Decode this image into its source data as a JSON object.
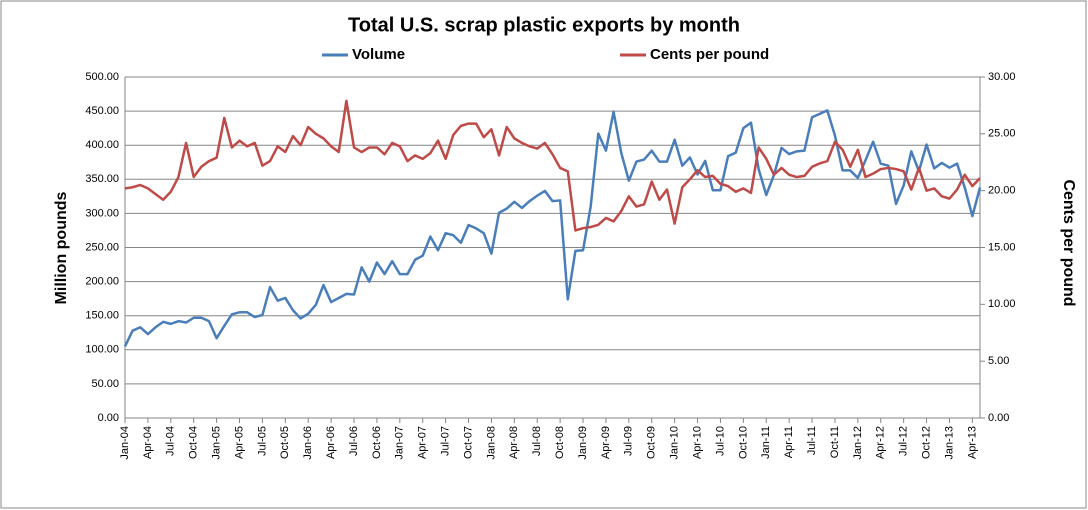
{
  "chart_data": {
    "type": "line",
    "title": "Total U.S. scrap plastic exports by month",
    "y_label": "Million pounds",
    "y2_label": "Cents per pound",
    "legend": "top",
    "grid": true,
    "categories": [
      "Jan-04",
      null,
      null,
      "Apr-04",
      null,
      null,
      "Jul-04",
      null,
      null,
      "Oct-04",
      null,
      null,
      "Jan-05",
      null,
      null,
      "Apr-05",
      null,
      null,
      "Jul-05",
      null,
      null,
      "Oct-05",
      null,
      null,
      "Jan-06",
      null,
      null,
      "Apr-06",
      null,
      null,
      "Jul-06",
      null,
      null,
      "Oct-06",
      null,
      null,
      "Jan-07",
      null,
      null,
      "Apr-07",
      null,
      null,
      "Jul-07",
      null,
      null,
      "Oct-07",
      null,
      null,
      "Jan-08",
      null,
      null,
      "Apr-08",
      null,
      null,
      "Jul-08",
      null,
      null,
      "Oct-08",
      null,
      null,
      "Jan-09",
      null,
      null,
      "Apr-09",
      null,
      null,
      "Jul-09",
      null,
      null,
      "Oct-09",
      null,
      null,
      "Jan-10",
      null,
      null,
      "Apr-10",
      null,
      null,
      "Jul-10",
      null,
      null,
      "Oct-10",
      null,
      null,
      "Jan-11",
      null,
      null,
      "Apr-11",
      null,
      null,
      "Jul-11",
      null,
      null,
      "Oct-11",
      null,
      null,
      "Jan-12",
      null,
      null,
      "Apr-12",
      null,
      null,
      "Jul-12",
      null,
      null,
      "Oct-12",
      null,
      null,
      "Jan-13",
      null,
      null,
      "Apr-13",
      null
    ],
    "series": [
      {
        "name": "Volume",
        "color": "#4a7ebb",
        "values": [
          105,
          128,
          133,
          123,
          133,
          141,
          138,
          142,
          140,
          147,
          147,
          142,
          117,
          135,
          152,
          155,
          155,
          148,
          151,
          192,
          172,
          176,
          158,
          146,
          153,
          166,
          195,
          170,
          176,
          182,
          181,
          221,
          200,
          228,
          211,
          230,
          211,
          211,
          232,
          238,
          266,
          246,
          271,
          268,
          257,
          283,
          278,
          271,
          241,
          301,
          307,
          317,
          308,
          318,
          326,
          333,
          318,
          319,
          174,
          245,
          246,
          310,
          417,
          392,
          449,
          389,
          348,
          376,
          379,
          392,
          376,
          376,
          408,
          370,
          382,
          357,
          377,
          334,
          334,
          384,
          389,
          425,
          433,
          365,
          327,
          356,
          396,
          387,
          391,
          392,
          441,
          446,
          451,
          414,
          363,
          363,
          352,
          378,
          405,
          373,
          370,
          314,
          341,
          391,
          362,
          401,
          366,
          374,
          367,
          373,
          338,
          296,
          338
        ]
      },
      {
        "name": "Cents per pound",
        "color": "#be4b48",
        "axis": "y2",
        "values": [
          20.2,
          20.3,
          20.5,
          20.2,
          19.7,
          19.2,
          19.9,
          21.2,
          24.2,
          21.2,
          22.1,
          22.6,
          22.9,
          26.4,
          23.8,
          24.4,
          23.9,
          24.2,
          22.2,
          22.6,
          23.9,
          23.4,
          24.8,
          24.0,
          25.6,
          25.0,
          24.6,
          23.9,
          23.4,
          27.9,
          23.8,
          23.4,
          23.8,
          23.8,
          23.2,
          24.2,
          23.9,
          22.6,
          23.1,
          22.8,
          23.3,
          24.4,
          22.8,
          24.9,
          25.7,
          25.9,
          25.9,
          24.7,
          25.4,
          23.1,
          25.6,
          24.6,
          24.2,
          23.9,
          23.7,
          24.2,
          23.2,
          22.0,
          21.7,
          16.5,
          16.7,
          16.8,
          17.0,
          17.6,
          17.3,
          18.2,
          19.5,
          18.6,
          18.8,
          20.8,
          19.2,
          20.1,
          17.1,
          20.3,
          21.0,
          21.8,
          21.2,
          21.3,
          20.6,
          20.4,
          19.9,
          20.2,
          19.8,
          23.8,
          22.8,
          21.4,
          22.0,
          21.4,
          21.2,
          21.3,
          22.1,
          22.4,
          22.6,
          24.3,
          23.6,
          22.1,
          23.6,
          21.2,
          21.5,
          21.9,
          22.0,
          21.9,
          21.7,
          20.1,
          22.0,
          20.0,
          20.2,
          19.5,
          19.3,
          20.1,
          21.4,
          20.4,
          21.1
        ]
      }
    ],
    "ylim": [
      0,
      500
    ],
    "yticks": [
      {
        "value": 0,
        "label": "0.00"
      },
      {
        "value": 50,
        "label": "50.00"
      },
      {
        "value": 100,
        "label": "100.00"
      },
      {
        "value": 150,
        "label": "150.00"
      },
      {
        "value": 200,
        "label": "200.00"
      },
      {
        "value": 250,
        "label": "250.00"
      },
      {
        "value": 300,
        "label": "300.00"
      },
      {
        "value": 350,
        "label": "350.00"
      },
      {
        "value": 400,
        "label": "400.00"
      },
      {
        "value": 450,
        "label": "450.00"
      },
      {
        "value": 500,
        "label": "500.00"
      }
    ],
    "y2lim": [
      0,
      30
    ],
    "y2ticks": [
      {
        "value": 0,
        "label": "0.00"
      },
      {
        "value": 5,
        "label": "5.00"
      },
      {
        "value": 10,
        "label": "10.00"
      },
      {
        "value": 15,
        "label": "15.00"
      },
      {
        "value": 20,
        "label": "20.00"
      },
      {
        "value": 25,
        "label": "25.00"
      },
      {
        "value": 30,
        "label": "30.00"
      }
    ]
  }
}
